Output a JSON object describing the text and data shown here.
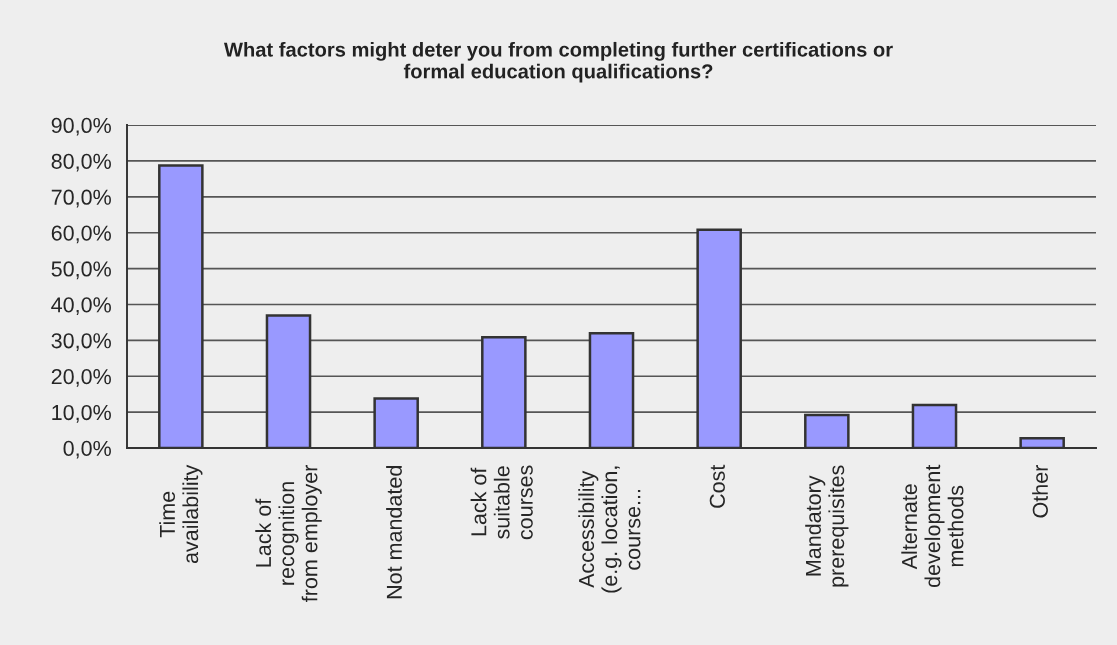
{
  "chart_data": {
    "type": "bar",
    "title": "What factors might deter you from completing further certifications or\nformal education qualifications?",
    "categories": [
      "Time\navailability",
      "Lack of\nrecognition\nfrom employer",
      "Not mandated",
      "Lack of\nsuitable\ncourses",
      "Accessibility\n(e.g. location,\ncourse...",
      "Cost",
      "Mandatory\nprerequisites",
      "Alternate\ndevelopment\nmethods",
      "Other"
    ],
    "values": [
      78.7,
      36.9,
      13.8,
      30.9,
      32.0,
      60.8,
      9.2,
      12.0,
      2.7
    ],
    "color": "#9999ff",
    "ylim": [
      0,
      90
    ],
    "yticks": [
      {
        "value": 0,
        "label": "0,0%"
      },
      {
        "value": 10,
        "label": "10,0%"
      },
      {
        "value": 20,
        "label": "20,0%"
      },
      {
        "value": 30,
        "label": "30,0%"
      },
      {
        "value": 40,
        "label": "40,0%"
      },
      {
        "value": 50,
        "label": "50,0%"
      },
      {
        "value": 60,
        "label": "60,0%"
      },
      {
        "value": 70,
        "label": "70,0%"
      },
      {
        "value": 80,
        "label": "80,0%"
      },
      {
        "value": 90,
        "label": "90,0%"
      }
    ],
    "grid": "y"
  }
}
